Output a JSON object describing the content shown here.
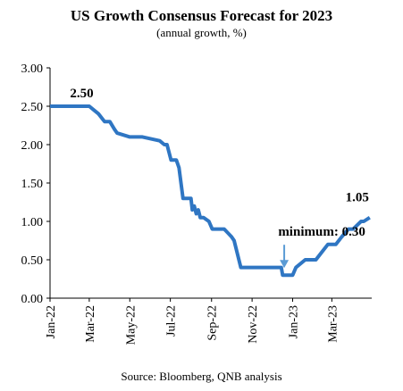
{
  "chart_data": {
    "type": "line",
    "title": "US Growth Consensus Forecast for 2023",
    "subtitle": "(annual growth, %)",
    "source": "Source: Bloomberg, QNB analysis",
    "xlabel": "",
    "ylabel": "",
    "ylim": [
      0.0,
      3.0
    ],
    "ytick_labels": [
      "0.00",
      "0.50",
      "1.00",
      "1.50",
      "2.00",
      "2.50",
      "3.00"
    ],
    "xtick_labels": [
      "Jan-22",
      "Mar-22",
      "May-22",
      "Jul-22",
      "Sep-22",
      "Nov-22",
      "Jan-23",
      "Mar-23"
    ],
    "xlim": [
      "2022-01-01",
      "2023-04-30"
    ],
    "grid": false,
    "colors": {
      "line": "#2f76c3",
      "arrow": "#5b9bd5",
      "axis": "#000000"
    },
    "series": [
      {
        "x": [
          "2022-01-01",
          "2022-03-01",
          "2022-03-08",
          "2022-03-15",
          "2022-03-24",
          "2022-04-01",
          "2022-04-08",
          "2022-04-12",
          "2022-05-01",
          "2022-05-20",
          "2022-06-15",
          "2022-06-22",
          "2022-06-26",
          "2022-07-02",
          "2022-07-10",
          "2022-07-14",
          "2022-07-20",
          "2022-08-01",
          "2022-08-03",
          "2022-08-06",
          "2022-08-09",
          "2022-08-12",
          "2022-08-15",
          "2022-08-20",
          "2022-08-28",
          "2022-09-02",
          "2022-09-20",
          "2022-10-01",
          "2022-10-05",
          "2022-10-15",
          "2022-12-15",
          "2022-12-17",
          "2023-01-01",
          "2023-01-06",
          "2023-01-20",
          "2023-02-05",
          "2023-02-14",
          "2023-02-23",
          "2023-03-07",
          "2023-03-16",
          "2023-03-26",
          "2023-04-02",
          "2023-04-14",
          "2023-04-18",
          "2023-04-27"
        ],
        "values": [
          2.5,
          2.5,
          2.45,
          2.4,
          2.3,
          2.3,
          2.2,
          2.15,
          2.1,
          2.1,
          2.05,
          2.0,
          2.0,
          1.8,
          1.8,
          1.7,
          1.3,
          1.3,
          1.15,
          1.2,
          1.1,
          1.15,
          1.05,
          1.05,
          1.0,
          0.9,
          0.9,
          0.8,
          0.75,
          0.4,
          0.4,
          0.3,
          0.3,
          0.4,
          0.5,
          0.5,
          0.6,
          0.7,
          0.7,
          0.8,
          0.9,
          0.9,
          1.0,
          1.0,
          1.05
        ]
      }
    ],
    "annotations": [
      {
        "text": "2.50",
        "x": "2022-01-15",
        "y": 2.5
      },
      {
        "text": "minimum: 0.30",
        "x": "2022-12-18",
        "y": 0.3
      },
      {
        "text": "1.05",
        "x": "2023-04-27",
        "y": 1.05
      }
    ]
  }
}
